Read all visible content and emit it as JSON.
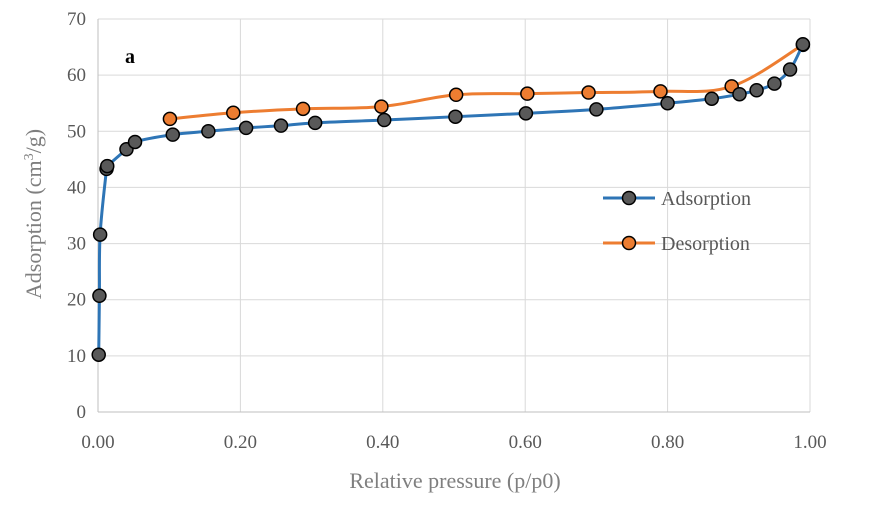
{
  "chart_data": {
    "type": "line",
    "panel_label": "a",
    "xlabel": "Relative pressure (p/p0)",
    "ylabel_main": "Adsorption (cm",
    "ylabel_sup": "3",
    "ylabel_end": "/g)",
    "xlim": [
      0,
      1
    ],
    "ylim": [
      0,
      70
    ],
    "x_ticks": [
      0,
      0.2,
      0.4,
      0.6,
      0.8,
      1.0
    ],
    "x_tick_labels": [
      "0.00",
      "0.20",
      "0.40",
      "0.60",
      "0.80",
      "1.00"
    ],
    "y_ticks": [
      0,
      10,
      20,
      30,
      40,
      50,
      60,
      70
    ],
    "y_tick_labels": [
      "0",
      "10",
      "20",
      "30",
      "40",
      "50",
      "60",
      "70"
    ],
    "grid": true,
    "legend_position": "right",
    "series": [
      {
        "name": "Adsorption",
        "color": "#2e75b6",
        "marker_fill": "#595959",
        "points": [
          [
            0.001,
            10.2
          ],
          [
            0.002,
            20.7
          ],
          [
            0.003,
            31.6
          ],
          [
            0.012,
            43.3
          ],
          [
            0.013,
            43.8
          ],
          [
            0.04,
            46.8
          ],
          [
            0.052,
            48.1
          ],
          [
            0.105,
            49.4
          ],
          [
            0.155,
            50.0
          ],
          [
            0.208,
            50.6
          ],
          [
            0.257,
            51.0
          ],
          [
            0.305,
            51.5
          ],
          [
            0.402,
            52.0
          ],
          [
            0.502,
            52.6
          ],
          [
            0.601,
            53.2
          ],
          [
            0.7,
            53.9
          ],
          [
            0.8,
            55.0
          ],
          [
            0.862,
            55.8
          ],
          [
            0.901,
            56.6
          ],
          [
            0.925,
            57.3
          ],
          [
            0.95,
            58.5
          ],
          [
            0.972,
            61.0
          ],
          [
            0.99,
            65.5
          ]
        ]
      },
      {
        "name": "Desorption",
        "color": "#ed7d31",
        "marker_fill": "#ed7d31",
        "points": [
          [
            0.99,
            65.4
          ],
          [
            0.89,
            58.0
          ],
          [
            0.79,
            57.1
          ],
          [
            0.689,
            56.9
          ],
          [
            0.603,
            56.7
          ],
          [
            0.503,
            56.5
          ],
          [
            0.398,
            54.4
          ],
          [
            0.288,
            54.0
          ],
          [
            0.19,
            53.3
          ],
          [
            0.101,
            52.2
          ]
        ]
      }
    ]
  }
}
